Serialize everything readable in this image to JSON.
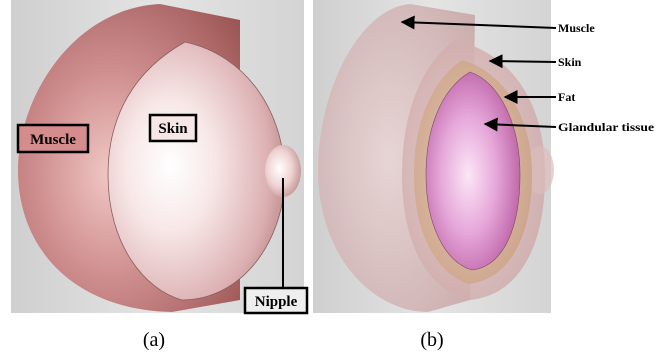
{
  "figure_a": {
    "caption": "(a)",
    "labels": {
      "muscle": "Muscle",
      "skin": "Skin",
      "nipple": "Nipple"
    }
  },
  "figure_b": {
    "caption": "(b)",
    "labels": {
      "muscle": "Muscle",
      "skin": "Skin",
      "fat": "Fat",
      "glandular": "Glandular tissue"
    }
  },
  "colors": {
    "muscle": "#c07878",
    "skin": "#f2d2d2",
    "fat": "#d9b39a",
    "glandular": "#d070b8",
    "background": "#d8d8d8"
  }
}
